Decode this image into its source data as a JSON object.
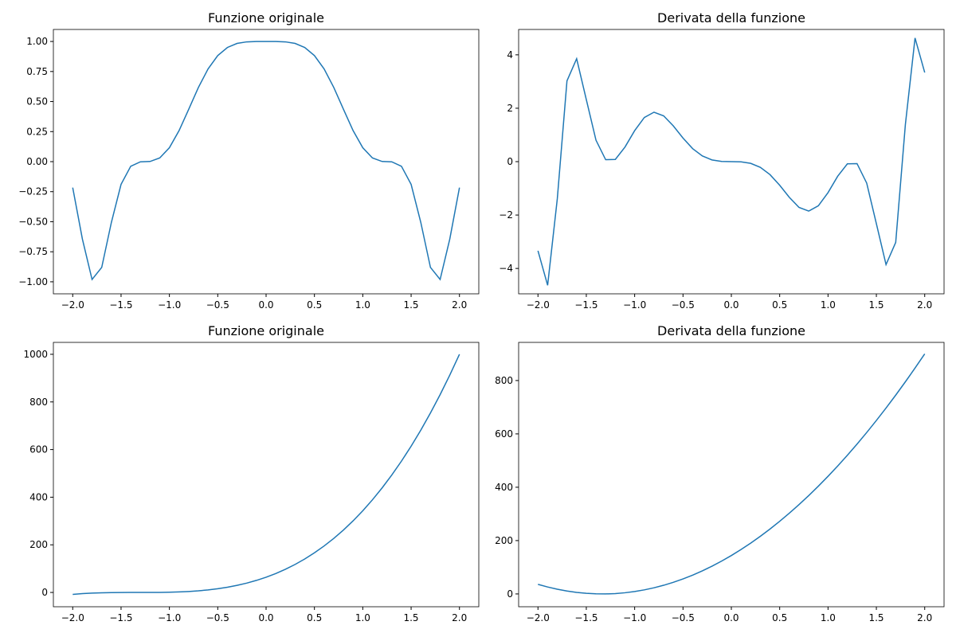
{
  "chart_data": [
    {
      "type": "line",
      "title": "Funzione originale",
      "color": "#1f77b4",
      "x": [
        -2,
        -1.9,
        -1.8,
        -1.7,
        -1.6,
        -1.5,
        -1.4,
        -1.3,
        -1.2,
        -1.1,
        -1,
        -0.9,
        -0.8,
        -0.7,
        -0.6,
        -0.5,
        -0.4,
        -0.3,
        -0.2,
        -0.1,
        0,
        0.1,
        0.2,
        0.3,
        0.4,
        0.5,
        0.6,
        0.7,
        0.8,
        0.9,
        1,
        1.1,
        1.2,
        1.3,
        1.4,
        1.5,
        1.6,
        1.7,
        1.8,
        1.9,
        2
      ],
      "values": [
        -0.2161,
        -0.644,
        -0.9808,
        -0.8803,
        -0.5055,
        -0.1891,
        -0.0384,
        -0.0013,
        0.0015,
        0.0308,
        0.116,
        0.2583,
        0.4364,
        0.6177,
        0.7715,
        0.8825,
        0.9501,
        0.9839,
        0.9968,
        0.9998,
        1,
        0.9998,
        0.9968,
        0.9839,
        0.9501,
        0.8825,
        0.7715,
        0.6177,
        0.4364,
        0.2583,
        0.116,
        0.0308,
        0.0015,
        -0.0013,
        -0.0384,
        -0.1891,
        -0.5055,
        -0.8803,
        -0.9808,
        -0.644,
        -0.2161
      ],
      "xlim": [
        -2.2,
        2.2
      ],
      "xticks": [
        {
          "value": -2,
          "label": "−2.0"
        },
        {
          "value": -1.5,
          "label": "−1.5"
        },
        {
          "value": -1,
          "label": "−1.0"
        },
        {
          "value": -0.5,
          "label": "−0.5"
        },
        {
          "value": 0,
          "label": "0.0"
        },
        {
          "value": 0.5,
          "label": "0.5"
        },
        {
          "value": 1,
          "label": "1.0"
        },
        {
          "value": 1.5,
          "label": "1.5"
        },
        {
          "value": 2,
          "label": "2.0"
        }
      ],
      "ylim": [
        -1.1,
        1.1
      ],
      "yticks": [
        {
          "value": -1,
          "label": "−1.00"
        },
        {
          "value": -0.75,
          "label": "−0.75"
        },
        {
          "value": -0.5,
          "label": "−0.50"
        },
        {
          "value": -0.25,
          "label": "−0.25"
        },
        {
          "value": 0,
          "label": "0.00"
        },
        {
          "value": 0.25,
          "label": "0.25"
        },
        {
          "value": 0.5,
          "label": "0.50"
        },
        {
          "value": 0.75,
          "label": "0.75"
        },
        {
          "value": 1,
          "label": "1.00"
        }
      ]
    },
    {
      "type": "line",
      "title": "Derivata della funzione",
      "color": "#1f77b4",
      "x": [
        -2,
        -1.9,
        -1.8,
        -1.7,
        -1.6,
        -1.5,
        -1.4,
        -1.3,
        -1.2,
        -1.1,
        -1,
        -0.9,
        -0.8,
        -0.7,
        -0.6,
        -0.5,
        -0.4,
        -0.3,
        -0.2,
        -0.1,
        0,
        0.1,
        0.2,
        0.3,
        0.4,
        0.5,
        0.6,
        0.7,
        0.8,
        0.9,
        1,
        1.1,
        1.2,
        1.3,
        1.4,
        1.5,
        1.6,
        1.7,
        1.8,
        1.9,
        2
      ],
      "values": [
        -3.337,
        -4.63,
        -1.39,
        3.025,
        3.855,
        2.325,
        0.804,
        0.073,
        0.082,
        0.547,
        1.16,
        1.653,
        1.852,
        1.714,
        1.338,
        0.883,
        0.4865,
        0.2125,
        0.0638,
        0.008,
        0,
        -0.008,
        -0.0638,
        -0.2125,
        -0.4865,
        -0.883,
        -1.338,
        -1.714,
        -1.852,
        -1.653,
        -1.16,
        -0.547,
        -0.082,
        -0.073,
        -0.804,
        -2.325,
        -3.855,
        -3.025,
        1.39,
        4.63,
        3.337
      ],
      "xlim": [
        -2.2,
        2.2
      ],
      "xticks": [
        {
          "value": -2,
          "label": "−2.0"
        },
        {
          "value": -1.5,
          "label": "−1.5"
        },
        {
          "value": -1,
          "label": "−1.0"
        },
        {
          "value": -0.5,
          "label": "−0.5"
        },
        {
          "value": 0,
          "label": "0.0"
        },
        {
          "value": 0.5,
          "label": "0.5"
        },
        {
          "value": 1,
          "label": "1.0"
        },
        {
          "value": 1.5,
          "label": "1.5"
        },
        {
          "value": 2,
          "label": "2.0"
        }
      ],
      "ylim": [
        -4.95,
        4.95
      ],
      "yticks": [
        {
          "value": -4,
          "label": "−4"
        },
        {
          "value": -2,
          "label": "−2"
        },
        0,
        2,
        4
      ]
    },
    {
      "type": "line",
      "title": "Funzione originale",
      "color": "#1f77b4",
      "x": [
        -2,
        -1.9,
        -1.8,
        -1.7,
        -1.6,
        -1.5,
        -1.4,
        -1.3,
        -1.2,
        -1.1,
        -1,
        -0.9,
        -0.8,
        -0.7,
        -0.6,
        -0.5,
        -0.4,
        -0.3,
        -0.2,
        -0.1,
        0,
        0.1,
        0.2,
        0.3,
        0.4,
        0.5,
        0.6,
        0.7,
        0.8,
        0.9,
        1,
        1.1,
        1.2,
        1.3,
        1.4,
        1.5,
        1.6,
        1.7,
        1.8,
        1.9,
        2
      ],
      "values": [
        -8,
        -4.913,
        -2.744,
        -1.331,
        -0.512,
        -0.125,
        -0.008,
        0.001,
        0.064,
        0.343,
        1,
        2.197,
        4.096,
        6.859,
        10.648,
        15.625,
        21.952,
        29.791,
        39.304,
        50.653,
        64,
        79.507,
        97.336,
        117.649,
        140.608,
        166.375,
        195.112,
        226.981,
        262.144,
        300.763,
        343,
        389.017,
        438.976,
        493.039,
        551.368,
        614.125,
        681.472,
        753.571,
        830.584,
        912.673,
        1000
      ],
      "xlim": [
        -2.2,
        2.2
      ],
      "xticks": [
        {
          "value": -2,
          "label": "−2.0"
        },
        {
          "value": -1.5,
          "label": "−1.5"
        },
        {
          "value": -1,
          "label": "−1.0"
        },
        {
          "value": -0.5,
          "label": "−0.5"
        },
        {
          "value": 0,
          "label": "0.0"
        },
        {
          "value": 0.5,
          "label": "0.5"
        },
        {
          "value": 1,
          "label": "1.0"
        },
        {
          "value": 1.5,
          "label": "1.5"
        },
        {
          "value": 2,
          "label": "2.0"
        }
      ],
      "ylim": [
        -60,
        1050
      ],
      "yticks": [
        0,
        200,
        400,
        600,
        800,
        1000
      ]
    },
    {
      "type": "line",
      "title": "Derivata della funzione",
      "color": "#1f77b4",
      "x": [
        -2,
        -1.9,
        -1.8,
        -1.7,
        -1.6,
        -1.5,
        -1.4,
        -1.3,
        -1.2,
        -1.1,
        -1,
        -0.9,
        -0.8,
        -0.7,
        -0.6,
        -0.5,
        -0.4,
        -0.3,
        -0.2,
        -0.1,
        0,
        0.1,
        0.2,
        0.3,
        0.4,
        0.5,
        0.6,
        0.7,
        0.8,
        0.9,
        1,
        1.1,
        1.2,
        1.3,
        1.4,
        1.5,
        1.6,
        1.7,
        1.8,
        1.9,
        2
      ],
      "values": [
        36,
        26.01,
        17.64,
        10.89,
        5.76,
        2.25,
        0.36,
        0.09,
        1.44,
        4.41,
        9,
        15.21,
        23.04,
        32.49,
        43.56,
        56.25,
        70.56,
        86.49,
        104.04,
        123.21,
        144,
        166.41,
        190.44,
        216.09,
        243.36,
        272.25,
        302.76,
        334.89,
        368.64,
        404.01,
        441,
        479.61,
        519.84,
        561.69,
        605.16,
        650.25,
        696.96,
        745.29,
        795.24,
        846.81,
        900
      ],
      "xlim": [
        -2.2,
        2.2
      ],
      "xticks": [
        {
          "value": -2,
          "label": "−2.0"
        },
        {
          "value": -1.5,
          "label": "−1.5"
        },
        {
          "value": -1,
          "label": "−1.0"
        },
        {
          "value": -0.5,
          "label": "−0.5"
        },
        {
          "value": 0,
          "label": "0.0"
        },
        {
          "value": 0.5,
          "label": "0.5"
        },
        {
          "value": 1,
          "label": "1.0"
        },
        {
          "value": 1.5,
          "label": "1.5"
        },
        {
          "value": 2,
          "label": "2.0"
        }
      ],
      "ylim": [
        -48,
        943
      ],
      "yticks": [
        0,
        200,
        400,
        600,
        800
      ]
    }
  ]
}
